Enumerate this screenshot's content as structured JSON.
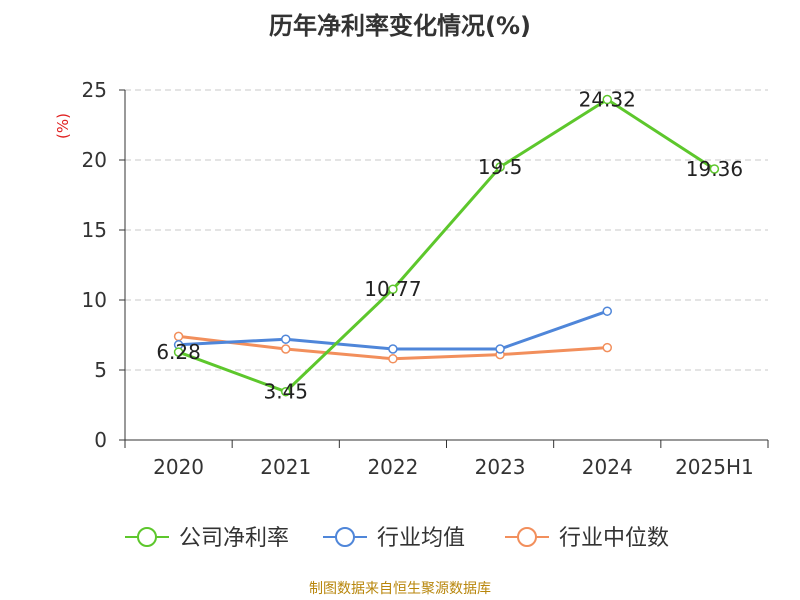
{
  "chart_data": {
    "type": "line",
    "title": "历年净利率变化情况(%)",
    "ylabel": "(%)",
    "xlabel": "",
    "categories": [
      "2020",
      "2021",
      "2022",
      "2023",
      "2024",
      "2025H1"
    ],
    "ylim": [
      0,
      25
    ],
    "yticks": [
      0,
      5,
      10,
      15,
      20,
      25
    ],
    "grid": true,
    "legend_position": "bottom",
    "series": [
      {
        "name": "公司净利率",
        "color": "#5dc72c",
        "values": [
          6.28,
          3.45,
          10.77,
          19.5,
          24.32,
          19.36
        ],
        "labels": [
          "6.28",
          "3.45",
          "10.77",
          "19.5",
          "24.32",
          "19.36"
        ]
      },
      {
        "name": "行业均值",
        "color": "#4f86d9",
        "values": [
          6.8,
          7.2,
          6.5,
          6.5,
          9.2,
          null
        ]
      },
      {
        "name": "行业中位数",
        "color": "#f28f5c",
        "values": [
          7.4,
          6.5,
          5.8,
          6.1,
          6.6,
          null
        ]
      }
    ]
  },
  "footer": {
    "credit": "制图数据来自恒生聚源数据库"
  },
  "colors": {
    "ylabel": "#e02020",
    "axis": "#333333",
    "grid": "#c8c8c8",
    "footer": "#b8860b"
  }
}
